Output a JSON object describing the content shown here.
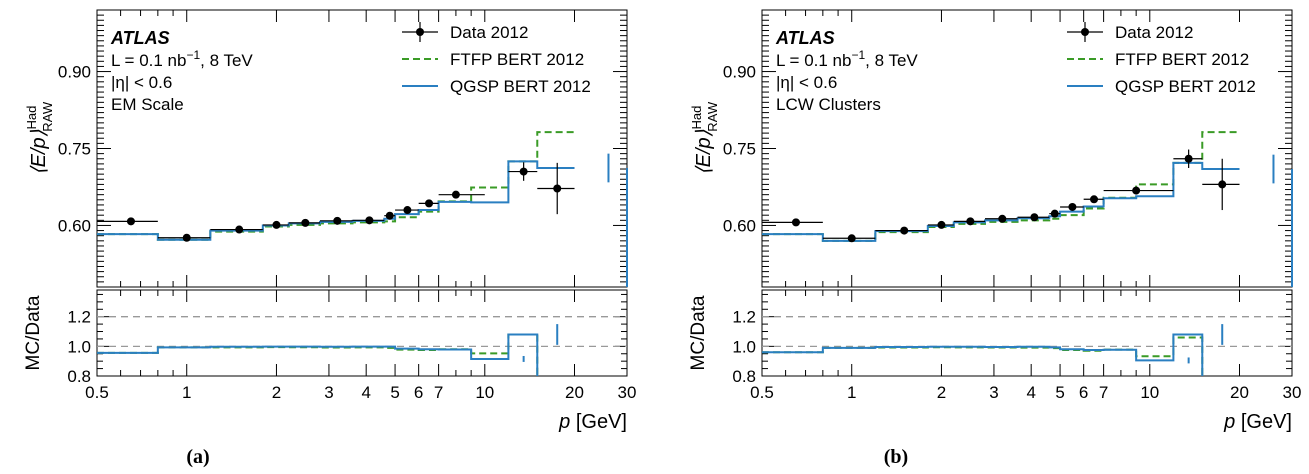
{
  "chart_data": [
    {
      "type": "line",
      "caption": "(a)",
      "ylabel_main": "⟨E/p⟩",
      "ylabel_sup": "Had",
      "ylabel_sub": "RAW",
      "ylabel_ratio": "MC/Data",
      "xlabel_var": "p",
      "xlabel_unit": " [GeV]",
      "xscale": "log",
      "xlim": [
        0.5,
        30
      ],
      "ylim": [
        0.48,
        1.02
      ],
      "ratio_ylim": [
        0.8,
        1.38
      ],
      "xticks": [
        0.5,
        1,
        2,
        3,
        4,
        5,
        6,
        7,
        10,
        20,
        30
      ],
      "xtick_labels": [
        "0.5",
        "1",
        "2",
        "3",
        "4",
        "5",
        "6",
        "7",
        "10",
        "20",
        "30"
      ],
      "yticks": [
        0.6,
        0.75,
        0.9
      ],
      "ytick_labels": [
        "0.60",
        "0.75",
        "0.90"
      ],
      "ratio_yticks": [
        0.8,
        1.0,
        1.2
      ],
      "ratio_ytick_labels": [
        "0.8",
        "1.0",
        "1.2"
      ],
      "ratio_reference_lines": [
        1.0,
        1.2
      ],
      "legend": {
        "placement": "top-right",
        "entries": [
          "Data 2012",
          "FTFP BERT 2012",
          "QGSP BERT 2012"
        ]
      },
      "annotations": {
        "experiment": "ATLAS",
        "lumi_prefix": "L = 0.1 nb",
        "lumi_exp": "−1",
        "lumi_suffix": ", 8 TeV",
        "eta": "|η| < 0.6",
        "scale": "EM Scale"
      },
      "bin_edges": [
        0.5,
        0.8,
        1.2,
        1.8,
        2.2,
        2.8,
        3.6,
        4.6,
        5.0,
        6.0,
        7.0,
        9.0,
        12.0,
        15.0,
        20.0,
        30.0
      ],
      "data": {
        "name": "Data 2012",
        "x": [
          0.65,
          1.0,
          1.5,
          2.0,
          2.5,
          3.2,
          4.1,
          4.8,
          5.5,
          6.5,
          8.0,
          13.5,
          17.5
        ],
        "y": [
          0.608,
          0.576,
          0.592,
          0.601,
          0.605,
          0.609,
          0.61,
          0.619,
          0.63,
          0.643,
          0.66,
          0.705,
          0.672
        ],
        "yerr": [
          0.004,
          0.003,
          0.002,
          0.002,
          0.002,
          0.002,
          0.002,
          0.003,
          0.003,
          0.004,
          0.005,
          0.018,
          0.05
        ],
        "xlo": [
          0.5,
          0.8,
          1.2,
          1.8,
          2.2,
          2.8,
          3.6,
          4.6,
          5.0,
          6.0,
          7.0,
          12.0,
          15.0
        ],
        "xhi": [
          0.8,
          1.2,
          1.8,
          2.2,
          2.8,
          3.6,
          4.6,
          5.0,
          6.0,
          7.0,
          10.0,
          15.0,
          20.0
        ]
      },
      "series": [
        {
          "name": "FTFP BERT 2012",
          "color": "#3a9b26",
          "values": [
            0.583,
            0.572,
            0.588,
            0.598,
            0.601,
            0.604,
            0.606,
            0.608,
            0.616,
            0.627,
            0.647,
            0.674,
            0.725,
            0.782
          ],
          "ratio": [
            0.956,
            0.993,
            0.993,
            0.995,
            0.994,
            0.992,
            0.993,
            0.99,
            0.978,
            0.975,
            0.98,
            0.953,
            1.08
          ]
        },
        {
          "name": "QGSP BERT 2012",
          "color": "#2a7fc1",
          "values": [
            0.583,
            0.572,
            0.59,
            0.6,
            0.604,
            0.607,
            0.609,
            0.613,
            0.622,
            0.63,
            0.646,
            0.645,
            0.725,
            0.712
          ],
          "ratio": [
            0.956,
            0.993,
            0.997,
            0.998,
            0.998,
            0.997,
            0.998,
            0.998,
            0.985,
            0.98,
            0.979,
            0.915,
            1.08
          ],
          "errbars": [
            {
              "x": 26,
              "y": 0.712,
              "err": 0.028
            }
          ],
          "ratio_errbars": [
            {
              "x": 13.5,
              "y": 0.915,
              "err": 0.02
            },
            {
              "x": 17.5,
              "y": 1.08,
              "err": 0.07
            }
          ]
        }
      ]
    },
    {
      "type": "line",
      "caption": "(b)",
      "ylabel_main": "⟨E/p⟩",
      "ylabel_sup": "Had",
      "ylabel_sub": "RAW",
      "ylabel_ratio": "MC/Data",
      "xlabel_var": "p",
      "xlabel_unit": " [GeV]",
      "xscale": "log",
      "xlim": [
        0.5,
        30
      ],
      "ylim": [
        0.48,
        1.02
      ],
      "ratio_ylim": [
        0.8,
        1.38
      ],
      "xticks": [
        0.5,
        1,
        2,
        3,
        4,
        5,
        6,
        7,
        10,
        20,
        30
      ],
      "xtick_labels": [
        "0.5",
        "1",
        "2",
        "3",
        "4",
        "5",
        "6",
        "7",
        "10",
        "20",
        "30"
      ],
      "yticks": [
        0.6,
        0.75,
        0.9
      ],
      "ytick_labels": [
        "0.60",
        "0.75",
        "0.90"
      ],
      "ratio_yticks": [
        0.8,
        1.0,
        1.2
      ],
      "ratio_ytick_labels": [
        "0.8",
        "1.0",
        "1.2"
      ],
      "ratio_reference_lines": [
        1.0,
        1.2
      ],
      "legend": {
        "placement": "top-right",
        "entries": [
          "Data 2012",
          "FTFP BERT 2012",
          "QGSP BERT 2012"
        ]
      },
      "annotations": {
        "experiment": "ATLAS",
        "lumi_prefix": "L = 0.1 nb",
        "lumi_exp": "−1",
        "lumi_suffix": ", 8 TeV",
        "eta": "|η| < 0.6",
        "scale": "LCW Clusters"
      },
      "bin_edges": [
        0.5,
        0.8,
        1.2,
        1.8,
        2.2,
        2.8,
        3.6,
        4.6,
        5.0,
        6.0,
        7.0,
        9.0,
        12.0,
        15.0,
        20.0,
        30.0
      ],
      "data": {
        "name": "Data 2012",
        "x": [
          0.65,
          1.0,
          1.5,
          2.0,
          2.5,
          3.2,
          4.1,
          4.8,
          5.5,
          6.5,
          9.0,
          13.5,
          17.5
        ],
        "y": [
          0.606,
          0.575,
          0.59,
          0.601,
          0.608,
          0.613,
          0.616,
          0.623,
          0.636,
          0.651,
          0.668,
          0.73,
          0.68
        ],
        "yerr": [
          0.004,
          0.003,
          0.002,
          0.002,
          0.002,
          0.002,
          0.002,
          0.003,
          0.003,
          0.004,
          0.005,
          0.018,
          0.05
        ],
        "xlo": [
          0.5,
          0.8,
          1.2,
          1.8,
          2.2,
          2.8,
          3.6,
          4.6,
          5.0,
          6.0,
          7.0,
          12.0,
          15.0
        ],
        "xhi": [
          0.8,
          1.2,
          1.8,
          2.2,
          2.8,
          3.6,
          4.6,
          5.0,
          6.0,
          7.0,
          12.0,
          15.0,
          20.0
        ]
      },
      "series": [
        {
          "name": "FTFP BERT 2012",
          "color": "#3a9b26",
          "values": [
            0.583,
            0.57,
            0.587,
            0.597,
            0.603,
            0.607,
            0.61,
            0.613,
            0.62,
            0.633,
            0.654,
            0.68,
            0.722,
            0.782
          ],
          "ratio": [
            0.96,
            0.99,
            0.992,
            0.994,
            0.993,
            0.992,
            0.991,
            0.988,
            0.975,
            0.97,
            0.978,
            0.933,
            1.06
          ]
        },
        {
          "name": "QGSP BERT 2012",
          "color": "#2a7fc1",
          "values": [
            0.583,
            0.57,
            0.589,
            0.599,
            0.606,
            0.61,
            0.614,
            0.618,
            0.627,
            0.637,
            0.653,
            0.657,
            0.722,
            0.71
          ],
          "ratio": [
            0.96,
            0.99,
            0.996,
            0.997,
            0.997,
            0.996,
            0.997,
            0.993,
            0.98,
            0.975,
            0.977,
            0.905,
            1.08
          ],
          "errbars": [
            {
              "x": 26,
              "y": 0.71,
              "err": 0.028
            }
          ],
          "ratio_errbars": [
            {
              "x": 13.5,
              "y": 0.905,
              "err": 0.02
            },
            {
              "x": 17.5,
              "y": 1.08,
              "err": 0.07
            }
          ]
        }
      ]
    }
  ]
}
